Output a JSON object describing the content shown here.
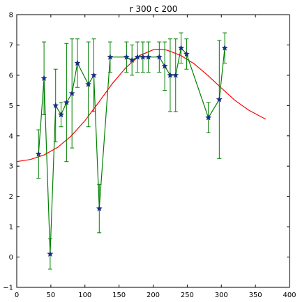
{
  "chart_data": {
    "type": "line",
    "title": "r 300 c 200",
    "xlabel": "",
    "ylabel": "",
    "xlim": [
      0,
      400
    ],
    "ylim": [
      -1,
      8
    ],
    "xticks": [
      0,
      50,
      100,
      150,
      200,
      250,
      300,
      350,
      400
    ],
    "yticks": [
      -1,
      0,
      1,
      2,
      3,
      4,
      5,
      6,
      7,
      8
    ],
    "grid": false,
    "colors": {
      "data_line": "#008000",
      "marker": "#1a2f80",
      "fit_line": "#ff0000"
    },
    "series": [
      {
        "kind": "errorbar-line",
        "marker": "star",
        "points": [
          {
            "x": 32,
            "y": 3.4,
            "yerr": 0.8
          },
          {
            "x": 40,
            "y": 5.9,
            "yerr": 1.2
          },
          {
            "x": 49,
            "y": 0.1,
            "yerr": 0.5
          },
          {
            "x": 57,
            "y": 5.0,
            "yerr": 1.2
          },
          {
            "x": 65,
            "y": 4.7,
            "yerr": 0.4
          },
          {
            "x": 73,
            "y": 5.1,
            "yerr": 1.95
          },
          {
            "x": 81,
            "y": 5.4,
            "yerr": 1.8
          },
          {
            "x": 89,
            "y": 6.4,
            "yerr": 0.8
          },
          {
            "x": 105,
            "y": 5.7,
            "yerr": 1.4
          },
          {
            "x": 113,
            "y": 6.0,
            "yerr": 1.2
          },
          {
            "x": 121,
            "y": 1.6,
            "yerr": 0.8
          },
          {
            "x": 137,
            "y": 6.6,
            "yerr": 0.5
          },
          {
            "x": 161,
            "y": 6.6,
            "yerr": 0.5
          },
          {
            "x": 169,
            "y": 6.5,
            "yerr": 0.5
          },
          {
            "x": 177,
            "y": 6.6,
            "yerr": 0.5
          },
          {
            "x": 185,
            "y": 6.6,
            "yerr": 0.5
          },
          {
            "x": 193,
            "y": 6.6,
            "yerr": 0.5
          },
          {
            "x": 209,
            "y": 6.6,
            "yerr": 0.5
          },
          {
            "x": 217,
            "y": 6.3,
            "yerr": 0.8
          },
          {
            "x": 225,
            "y": 6.0,
            "yerr": 1.2
          },
          {
            "x": 233,
            "y": 6.0,
            "yerr": 1.2
          },
          {
            "x": 241,
            "y": 6.9,
            "yerr": 0.5
          },
          {
            "x": 249,
            "y": 6.7,
            "yerr": 0.5
          },
          {
            "x": 281,
            "y": 4.6,
            "yerr": 0.5
          },
          {
            "x": 297,
            "y": 5.2,
            "yerr": 1.95
          },
          {
            "x": 305,
            "y": 6.9,
            "yerr": 0.5
          }
        ]
      },
      {
        "kind": "fit-curve",
        "x": [
          0,
          20,
          40,
          60,
          80,
          100,
          120,
          140,
          160,
          180,
          200,
          210,
          220,
          240,
          260,
          280,
          300,
          320,
          340,
          365
        ],
        "y": [
          3.15,
          3.22,
          3.37,
          3.62,
          4.0,
          4.5,
          5.1,
          5.72,
          6.25,
          6.65,
          6.84,
          6.86,
          6.83,
          6.66,
          6.38,
          6.0,
          5.58,
          5.17,
          4.85,
          4.55
        ]
      }
    ]
  }
}
